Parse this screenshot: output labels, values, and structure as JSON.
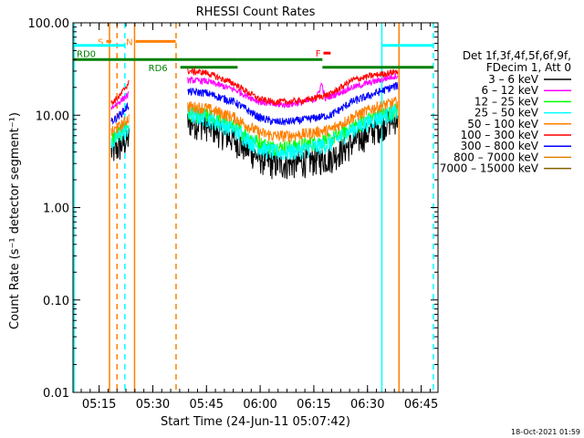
{
  "chart_data": {
    "type": "line",
    "title": "RHESSI Count Rates",
    "xlabel": "Start Time (24-Jun-11 05:07:42)",
    "ylabel": "Count Rate (s⁻¹ detector segment⁻¹)",
    "y_scale": "log",
    "ylim": [
      0.01,
      100.0
    ],
    "x_unit": "minutes after 05:07:42",
    "xlim": [
      0,
      102
    ],
    "x_ticks": [
      {
        "label": "05:15",
        "t": 7.3
      },
      {
        "label": "05:30",
        "t": 22.3
      },
      {
        "label": "05:45",
        "t": 37.3
      },
      {
        "label": "06:00",
        "t": 52.3
      },
      {
        "label": "06:15",
        "t": 67.3
      },
      {
        "label": "06:30",
        "t": 82.3
      },
      {
        "label": "06:45",
        "t": 97.3
      }
    ],
    "y_ticks": [
      {
        "label": "0.01",
        "v": 0.01
      },
      {
        "label": "0.10",
        "v": 0.1
      },
      {
        "label": "1.00",
        "v": 1.0
      },
      {
        "label": "10.00",
        "v": 10.0
      },
      {
        "label": "100.00",
        "v": 100.0
      }
    ],
    "legend": {
      "title_lines": [
        "Det 1f,3f,4f,5f,6f,9f,",
        "FDecim 1, Att 0"
      ],
      "entries": [
        {
          "label": "3 – 6 keV",
          "color": "#000000"
        },
        {
          "label": "6 – 12 keV",
          "color": "#ff00ff"
        },
        {
          "label": "12 – 25 keV",
          "color": "#00ff00"
        },
        {
          "label": "25 – 50 keV",
          "color": "#00ffff"
        },
        {
          "label": "50 – 100 keV",
          "color": "#ff8000"
        },
        {
          "label": "100 – 300 keV",
          "color": "#ff0000"
        },
        {
          "label": "300 – 800 keV",
          "color": "#0000ff"
        },
        {
          "label": "800 – 7000 keV",
          "color": "#e08000"
        },
        {
          "label": "7000 – 15000 keV",
          "color": "#806000"
        }
      ]
    },
    "series": [
      {
        "name": "3 – 6 keV",
        "color": "#000000",
        "noise": 0.35,
        "points": [
          [
            10.7,
            4.0
          ],
          [
            13.0,
            4.5
          ],
          [
            15.7,
            5.8
          ],
          [
            32.0,
            8.5
          ],
          [
            37.0,
            8.0
          ],
          [
            45.0,
            5.5
          ],
          [
            52.0,
            3.5
          ],
          [
            56.0,
            3.0
          ],
          [
            60.0,
            3.0
          ],
          [
            65.0,
            3.2
          ],
          [
            72.0,
            3.5
          ],
          [
            78.0,
            5.0
          ],
          [
            84.0,
            7.0
          ],
          [
            89.0,
            9.0
          ],
          [
            90.8,
            9.5
          ]
        ]
      },
      {
        "name": "12 – 25 keV",
        "color": "#00ff00",
        "noise": 0.2,
        "points": [
          [
            10.7,
            5.5
          ],
          [
            13.0,
            6.5
          ],
          [
            15.7,
            8.0
          ],
          [
            32.0,
            10.5
          ],
          [
            37.0,
            10.0
          ],
          [
            45.0,
            7.5
          ],
          [
            52.0,
            5.0
          ],
          [
            56.0,
            4.5
          ],
          [
            60.0,
            4.5
          ],
          [
            65.0,
            4.8
          ],
          [
            72.0,
            5.5
          ],
          [
            78.0,
            7.5
          ],
          [
            84.0,
            9.5
          ],
          [
            89.0,
            11.0
          ],
          [
            90.8,
            11.5
          ]
        ]
      },
      {
        "name": "25 – 50 keV",
        "color": "#00ffff",
        "noise": 0.22,
        "points": [
          [
            10.7,
            5.0
          ],
          [
            13.0,
            6.0
          ],
          [
            15.7,
            7.5
          ],
          [
            32.0,
            10.0
          ],
          [
            37.0,
            9.5
          ],
          [
            45.0,
            7.0
          ],
          [
            52.0,
            4.5
          ],
          [
            56.0,
            4.0
          ],
          [
            60.0,
            4.0
          ],
          [
            65.0,
            4.3
          ],
          [
            72.0,
            5.0
          ],
          [
            78.0,
            7.0
          ],
          [
            84.0,
            9.0
          ],
          [
            89.0,
            10.5
          ],
          [
            90.8,
            11.0
          ]
        ]
      },
      {
        "name": "50 – 100 keV",
        "color": "#ff8000",
        "noise": 0.15,
        "points": [
          [
            10.7,
            6.5
          ],
          [
            13.0,
            7.5
          ],
          [
            15.7,
            9.5
          ],
          [
            32.0,
            12.5
          ],
          [
            37.0,
            12.0
          ],
          [
            45.0,
            9.5
          ],
          [
            52.0,
            6.5
          ],
          [
            56.0,
            6.0
          ],
          [
            60.0,
            6.0
          ],
          [
            65.0,
            6.3
          ],
          [
            72.0,
            7.0
          ],
          [
            78.0,
            9.5
          ],
          [
            84.0,
            12.0
          ],
          [
            89.0,
            13.5
          ],
          [
            90.8,
            14.0
          ]
        ]
      },
      {
        "name": "300 – 800 keV",
        "color": "#0000ff",
        "noise": 0.1,
        "points": [
          [
            10.7,
            8.5
          ],
          [
            13.0,
            10.0
          ],
          [
            15.7,
            13.0
          ],
          [
            32.0,
            18.0
          ],
          [
            37.0,
            17.5
          ],
          [
            45.0,
            14.0
          ],
          [
            52.0,
            9.5
          ],
          [
            56.0,
            8.5
          ],
          [
            60.0,
            8.5
          ],
          [
            65.0,
            9.0
          ],
          [
            72.0,
            10.0
          ],
          [
            78.0,
            14.0
          ],
          [
            84.0,
            17.0
          ],
          [
            89.0,
            20.0
          ],
          [
            90.8,
            21.0
          ]
        ]
      },
      {
        "name": "6 – 12 keV",
        "color": "#ff00ff",
        "noise": 0.08,
        "points": [
          [
            10.7,
            12.0
          ],
          [
            13.0,
            14.0
          ],
          [
            15.7,
            17.0
          ],
          [
            32.0,
            24.0
          ],
          [
            37.0,
            23.5
          ],
          [
            45.0,
            19.0
          ],
          [
            52.0,
            14.0
          ],
          [
            56.0,
            13.0
          ],
          [
            60.0,
            13.0
          ],
          [
            65.0,
            14.0
          ],
          [
            68.0,
            15.0
          ],
          [
            69.5,
            22.0
          ],
          [
            70.5,
            15.0
          ],
          [
            72.0,
            16.0
          ],
          [
            78.0,
            20.0
          ],
          [
            84.0,
            23.0
          ],
          [
            89.0,
            26.0
          ],
          [
            90.8,
            27.0
          ]
        ]
      },
      {
        "name": "100 – 300 keV",
        "color": "#ff0000",
        "noise": 0.08,
        "points": [
          [
            10.7,
            13.5
          ],
          [
            13.0,
            16.0
          ],
          [
            15.7,
            23.0
          ],
          [
            32.0,
            30.0
          ],
          [
            37.0,
            29.0
          ],
          [
            45.0,
            22.0
          ],
          [
            52.0,
            15.0
          ],
          [
            56.0,
            14.0
          ],
          [
            60.0,
            14.0
          ],
          [
            65.0,
            14.5
          ],
          [
            72.0,
            17.0
          ],
          [
            78.0,
            24.0
          ],
          [
            84.0,
            27.0
          ],
          [
            89.0,
            29.0
          ],
          [
            90.8,
            30.0
          ]
        ]
      }
    ],
    "attenuator_bars": [
      {
        "label": "S",
        "color": "#ff8000",
        "t0": 9.3,
        "t1": 10.7,
        "v": 63
      },
      {
        "label": "N",
        "color": "#ff8000",
        "t0": 17.5,
        "t1": 28.7,
        "v": 63
      },
      {
        "label": "",
        "color": "#00ffff",
        "t0": 0.0,
        "t1": 14.5,
        "v": 57
      },
      {
        "label": "",
        "color": "#00ffff",
        "t0": 86.3,
        "t1": 100.7,
        "v": 57
      },
      {
        "label": "F",
        "color": "#ff0000",
        "t0": 70.0,
        "t1": 72.0,
        "v": 47
      }
    ],
    "rd_bars": [
      {
        "label": "RD0",
        "color": "#008000",
        "t0": 0.0,
        "t1": 46.0,
        "v": 40
      },
      {
        "label": "RD6",
        "color": "#008000",
        "t0": 30.0,
        "t1": 46.0,
        "v": 33
      },
      {
        "label": "",
        "color": "#008000",
        "t0": 46.0,
        "t1": 69.7,
        "v": 40
      },
      {
        "label": "",
        "color": "#008000",
        "t0": 69.7,
        "t1": 100.7,
        "v": 33
      }
    ],
    "vertical_lines": [
      {
        "t": 0.3,
        "style": "solid",
        "color": "#00ffff"
      },
      {
        "t": 10.2,
        "style": "solid",
        "color": "#ff8000"
      },
      {
        "t": 12.3,
        "style": "dashed",
        "color": "#ff8000"
      },
      {
        "t": 14.5,
        "style": "dashed",
        "color": "#00ffff"
      },
      {
        "t": 17.2,
        "style": "solid",
        "color": "#ff8000"
      },
      {
        "t": 28.8,
        "style": "dashed",
        "color": "#ff8000"
      },
      {
        "t": 86.3,
        "style": "solid",
        "color": "#00ffff"
      },
      {
        "t": 91.1,
        "style": "solid",
        "color": "#ff8000"
      },
      {
        "t": 100.7,
        "style": "dashed",
        "color": "#00ffff"
      }
    ],
    "footer": "18-Oct-2021 01:59"
  }
}
